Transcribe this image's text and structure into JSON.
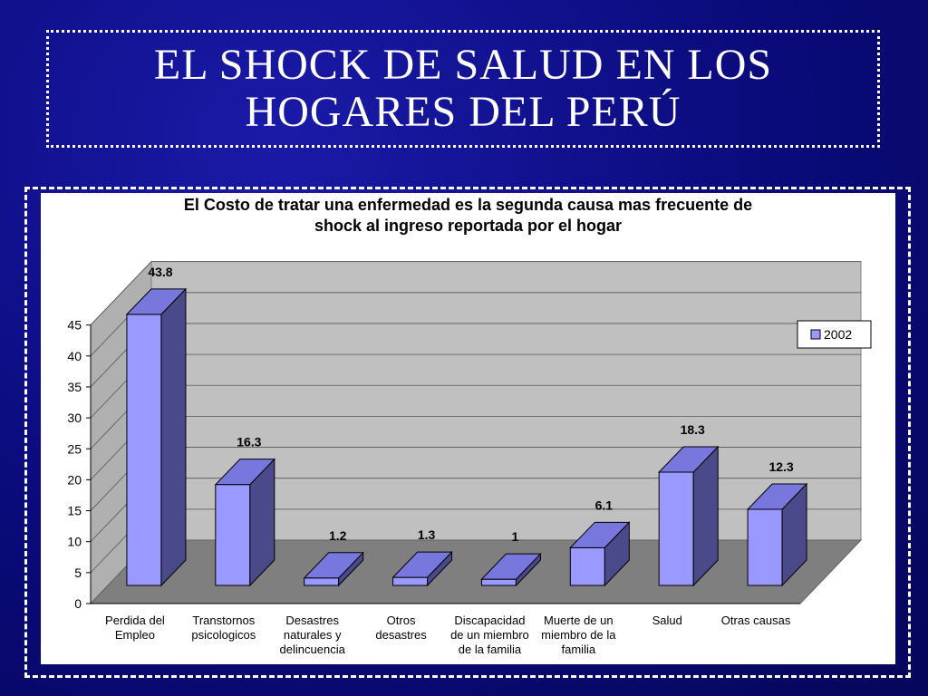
{
  "slide": {
    "title_line1": "EL SHOCK DE SALUD EN LOS",
    "title_line2": "HOGARES DEL PERÚ"
  },
  "colors": {
    "bar_front": "#9999ff",
    "bar_top": "#7777dd",
    "bar_side": "#4a4a8a",
    "wall": "#c0c0c0",
    "floor": "#7f7f7f"
  },
  "chart_data": {
    "type": "bar",
    "title_line1": "El Costo de tratar una enfermedad es la segunda causa mas frecuente de",
    "title_line2": "shock al ingreso reportada por el hogar",
    "categories": [
      [
        "Perdida del",
        "Empleo"
      ],
      [
        "Transtornos",
        "psicologicos"
      ],
      [
        "Desastres",
        "naturales y",
        "delincuencia"
      ],
      [
        "Otros",
        "desastres"
      ],
      [
        "Discapacidad",
        "de un miembro",
        "de la familia"
      ],
      [
        "Muerte de un",
        "miembro de la",
        "familia"
      ],
      [
        "Salud"
      ],
      [
        "Otras causas"
      ]
    ],
    "series": [
      {
        "name": "2002",
        "values": [
          43.8,
          16.3,
          1.2,
          1.3,
          1,
          6.1,
          18.3,
          12.3
        ]
      }
    ],
    "data_labels": [
      "43.8",
      "16.3",
      "1.2",
      "1.3",
      "1",
      "6.1",
      "18.3",
      "12.3"
    ],
    "ylim": [
      0,
      45
    ],
    "yticks": [
      0,
      5,
      10,
      15,
      20,
      25,
      30,
      35,
      40,
      45
    ],
    "grid": true,
    "legend": "right",
    "style": "3d"
  }
}
